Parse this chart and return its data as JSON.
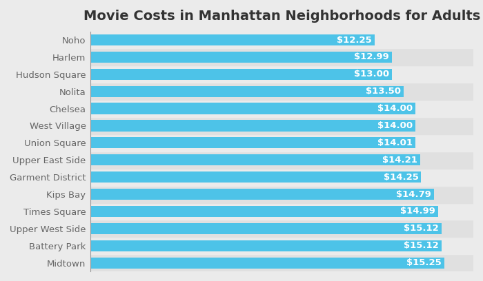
{
  "title": "Movie Costs in Manhattan Neighborhoods for Adults",
  "categories": [
    "Noho",
    "Harlem",
    "Hudson Square",
    "Nolita",
    "Chelsea",
    "West Village",
    "Union Square",
    "Upper East Side",
    "Garment District",
    "Kips Bay",
    "Times Square",
    "Upper West Side",
    "Battery Park",
    "Midtown"
  ],
  "values": [
    12.25,
    12.99,
    13.0,
    13.5,
    14.0,
    14.0,
    14.01,
    14.21,
    14.25,
    14.79,
    14.99,
    15.12,
    15.12,
    15.25
  ],
  "labels": [
    "$12.25",
    "$12.99",
    "$13.00",
    "$13.50",
    "$14.00",
    "$14.00",
    "$14.01",
    "$14.21",
    "$14.25",
    "$14.79",
    "$14.99",
    "$15.12",
    "$15.12",
    "$15.25"
  ],
  "bar_color": "#4DC3E8",
  "label_color": "#ffffff",
  "background_color": "#ebebeb",
  "stripe_color_even": "#e0e0e0",
  "stripe_color_odd": "#ebebeb",
  "title_fontsize": 14,
  "label_fontsize": 9.5,
  "tick_fontsize": 9.5,
  "bar_height": 0.65,
  "xlim": [
    0,
    16.5
  ]
}
